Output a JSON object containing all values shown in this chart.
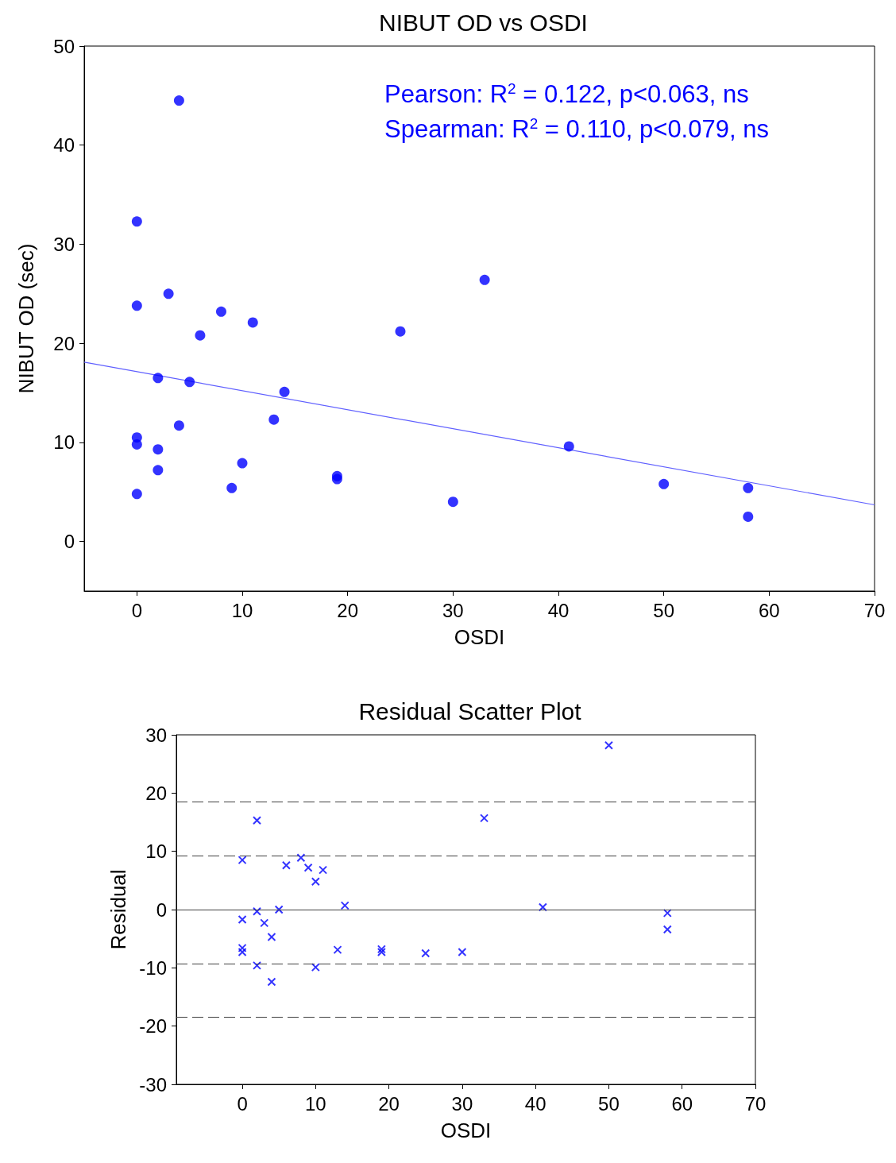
{
  "chart_data": [
    {
      "type": "scatter",
      "title": "NIBUT OD vs OSDI",
      "xlabel": "OSDI",
      "ylabel": "NIBUT OD (sec)",
      "xlim": [
        -5,
        70
      ],
      "xticks": [
        0,
        10,
        20,
        30,
        40,
        50,
        60,
        70
      ],
      "ylim": [
        -5,
        50
      ],
      "yticks": [
        0,
        10,
        20,
        30,
        40,
        50
      ],
      "grid": false,
      "legend": false,
      "annotations": [
        "Pearson: R$^{2}$ = 0.122, p<0.063, ns",
        "Spearman: R$^{2}$ = 0.110, p<0.079, ns"
      ],
      "series": [
        {
          "color": "#0000ff",
          "marker": "circle",
          "x": [
            4,
            0,
            0,
            3,
            8,
            6,
            11,
            2,
            5,
            14,
            13,
            4,
            0,
            0,
            2,
            10,
            2,
            9,
            0,
            19,
            19,
            25,
            33,
            30,
            41,
            50,
            58,
            58
          ],
          "values": [
            44.5,
            32.3,
            23.8,
            25.0,
            23.2,
            20.8,
            22.1,
            16.5,
            16.1,
            15.1,
            12.3,
            11.7,
            10.5,
            9.8,
            9.3,
            7.9,
            7.2,
            5.4,
            4.8,
            6.6,
            6.3,
            21.2,
            26.4,
            4.0,
            9.6,
            5.8,
            5.4,
            2.5
          ]
        },
        {
          "type": "line",
          "color": "#6060ff",
          "marker": "none",
          "line_style": "solid",
          "x": [
            -5,
            70
          ],
          "values": [
            18.1,
            3.7
          ]
        }
      ]
    },
    {
      "type": "scatter",
      "title": "Residual Scatter Plot",
      "xlabel": "OSDI",
      "ylabel": "Residual",
      "xlim": [
        -9,
        70
      ],
      "xticks": [
        0,
        10,
        20,
        30,
        40,
        50,
        60,
        70
      ],
      "ylim": [
        -30,
        30
      ],
      "yticks": [
        -30,
        -20,
        -10,
        0,
        10,
        20,
        30
      ],
      "grid": false,
      "legend": false,
      "ref_lines": [
        {
          "axis": "y",
          "value": 0,
          "color": "#404040",
          "line_style": "solid"
        },
        {
          "axis": "y",
          "value": 18.5,
          "color": "#404040",
          "line_style": "dashed"
        },
        {
          "axis": "y",
          "value": 9.3,
          "color": "#404040",
          "line_style": "dashed"
        },
        {
          "axis": "y",
          "value": -9.3,
          "color": "#404040",
          "line_style": "dashed"
        },
        {
          "axis": "y",
          "value": -18.5,
          "color": "#404040",
          "line_style": "dashed"
        }
      ],
      "series": [
        {
          "color": "#0000ff",
          "marker": "cross",
          "x": [
            50,
            33,
            2,
            0,
            6,
            8,
            9,
            11,
            10,
            14,
            41,
            0,
            2,
            3,
            5,
            4,
            0,
            0,
            13,
            19,
            19,
            25,
            30,
            2,
            10,
            4,
            58,
            58
          ],
          "values": [
            28.2,
            15.7,
            15.3,
            8.5,
            7.6,
            8.9,
            7.2,
            6.8,
            4.8,
            0.7,
            0.4,
            -1.7,
            -0.3,
            -2.3,
            0,
            -4.7,
            -6.6,
            -7.3,
            -6.9,
            -6.8,
            -7.3,
            -7.5,
            -7.3,
            -9.6,
            -9.9,
            -12.4,
            -0.6,
            -3.4
          ]
        }
      ]
    }
  ]
}
